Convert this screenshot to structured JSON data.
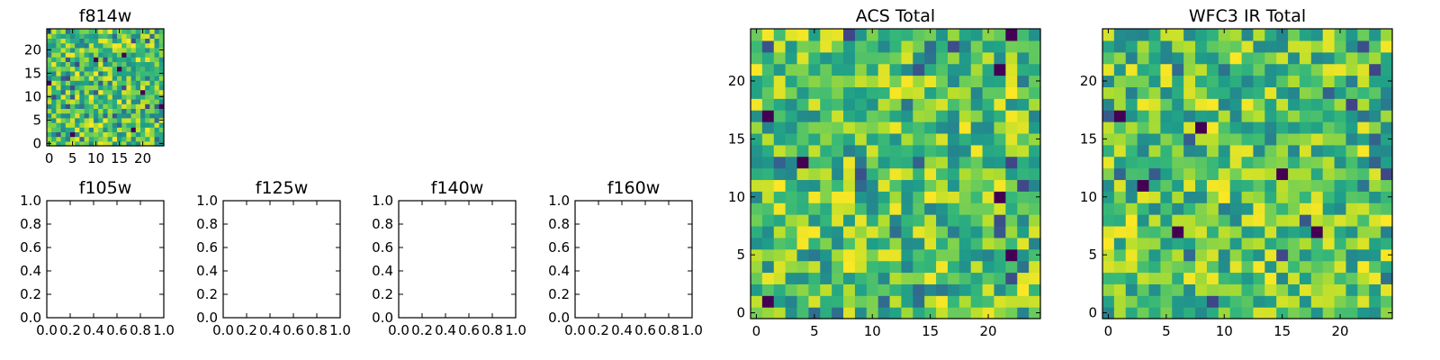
{
  "chart_data": [
    {
      "id": "f814w",
      "type": "heatmap",
      "title": "f814w",
      "xlim": [
        -0.5,
        24.5
      ],
      "ylim": [
        -0.5,
        24.5
      ],
      "xticks": [
        0,
        5,
        10,
        15,
        20
      ],
      "yticks": [
        0,
        5,
        10,
        15,
        20
      ],
      "xtick_labels": [
        "0",
        "5",
        "10",
        "15",
        "20"
      ],
      "ytick_labels": [
        "0",
        "5",
        "10",
        "15",
        "20"
      ],
      "grid_size": 25,
      "seed": 814,
      "colormap": "viridis",
      "value_range": [
        0,
        1
      ]
    },
    {
      "id": "f105w",
      "type": "heatmap",
      "title": "f105w",
      "empty": true,
      "xlim": [
        0,
        1
      ],
      "ylim": [
        0,
        1
      ],
      "xticks": [
        0,
        0.2,
        0.4,
        0.6,
        0.8,
        1.0
      ],
      "yticks": [
        0,
        0.2,
        0.4,
        0.6,
        0.8,
        1.0
      ],
      "xtick_labels": [
        "0.0",
        "0.2",
        "0.4",
        "0.6",
        "0.8",
        "1.0"
      ],
      "ytick_labels": [
        "0.0",
        "0.2",
        "0.4",
        "0.6",
        "0.8",
        "1.0"
      ]
    },
    {
      "id": "f125w",
      "type": "heatmap",
      "title": "f125w",
      "empty": true,
      "xlim": [
        0,
        1
      ],
      "ylim": [
        0,
        1
      ],
      "xticks": [
        0,
        0.2,
        0.4,
        0.6,
        0.8,
        1.0
      ],
      "yticks": [
        0,
        0.2,
        0.4,
        0.6,
        0.8,
        1.0
      ],
      "xtick_labels": [
        "0.0",
        "0.2",
        "0.4",
        "0.6",
        "0.8",
        "1.0"
      ],
      "ytick_labels": [
        "0.0",
        "0.2",
        "0.4",
        "0.6",
        "0.8",
        "1.0"
      ]
    },
    {
      "id": "f140w",
      "type": "heatmap",
      "title": "f140w",
      "empty": true,
      "xlim": [
        0,
        1
      ],
      "ylim": [
        0,
        1
      ],
      "xticks": [
        0,
        0.2,
        0.4,
        0.6,
        0.8,
        1.0
      ],
      "yticks": [
        0,
        0.2,
        0.4,
        0.6,
        0.8,
        1.0
      ],
      "xtick_labels": [
        "0.0",
        "0.2",
        "0.4",
        "0.6",
        "0.8",
        "1.0"
      ],
      "ytick_labels": [
        "0.0",
        "0.2",
        "0.4",
        "0.6",
        "0.8",
        "1.0"
      ]
    },
    {
      "id": "f160w",
      "type": "heatmap",
      "title": "f160w",
      "empty": true,
      "xlim": [
        0,
        1
      ],
      "ylim": [
        0,
        1
      ],
      "xticks": [
        0,
        0.2,
        0.4,
        0.6,
        0.8,
        1.0
      ],
      "yticks": [
        0,
        0.2,
        0.4,
        0.6,
        0.8,
        1.0
      ],
      "xtick_labels": [
        "0.0",
        "0.2",
        "0.4",
        "0.6",
        "0.8",
        "1.0"
      ],
      "ytick_labels": [
        "0.0",
        "0.2",
        "0.4",
        "0.6",
        "0.8",
        "1.0"
      ]
    },
    {
      "id": "acs-total",
      "type": "heatmap",
      "title": "ACS Total",
      "xlim": [
        -0.5,
        24.5
      ],
      "ylim": [
        -0.5,
        24.5
      ],
      "xticks": [
        0,
        5,
        10,
        15,
        20
      ],
      "yticks": [
        0,
        5,
        10,
        15,
        20
      ],
      "xtick_labels": [
        "0",
        "5",
        "10",
        "15",
        "20"
      ],
      "ytick_labels": [
        "0",
        "5",
        "10",
        "15",
        "20"
      ],
      "grid_size": 25,
      "seed": 1001,
      "colormap": "viridis",
      "value_range": [
        0,
        1
      ]
    },
    {
      "id": "wfc3-ir-total",
      "type": "heatmap",
      "title": "WFC3 IR Total",
      "xlim": [
        -0.5,
        24.5
      ],
      "ylim": [
        -0.5,
        24.5
      ],
      "xticks": [
        0,
        5,
        10,
        15,
        20
      ],
      "yticks": [
        0,
        5,
        10,
        15,
        20
      ],
      "xtick_labels": [
        "0",
        "5",
        "10",
        "15",
        "20"
      ],
      "ytick_labels": [
        "0",
        "5",
        "10",
        "15",
        "20"
      ],
      "grid_size": 25,
      "seed": 2002,
      "colormap": "viridis",
      "value_range": [
        0,
        1
      ]
    }
  ]
}
